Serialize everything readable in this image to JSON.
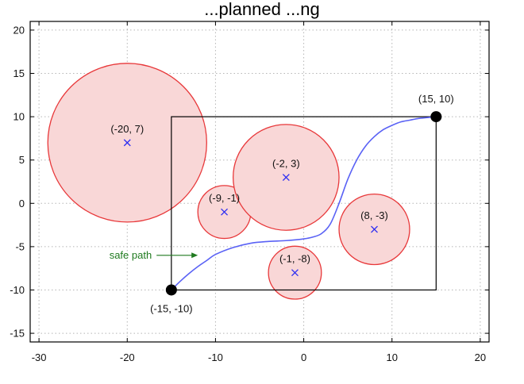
{
  "chart_data": {
    "type": "scatter",
    "title": "...planned ...ng",
    "xlim": [
      -31,
      21
    ],
    "ylim": [
      -16,
      21
    ],
    "x_ticks": [
      -30,
      -20,
      -10,
      0,
      10,
      20
    ],
    "y_ticks": [
      -15,
      -10,
      -5,
      0,
      5,
      10,
      15,
      20
    ],
    "x_tick_labels": [
      "-30",
      "-20",
      "-10",
      "0",
      "10",
      "20"
    ],
    "y_tick_labels": [
      "-15",
      "-10",
      "-5",
      "0",
      "5",
      "10",
      "15",
      "20"
    ],
    "grid": true,
    "obstacles": [
      {
        "cx": -20,
        "cy": 7,
        "r": 9,
        "label": "(-20, 7)"
      },
      {
        "cx": -9,
        "cy": -1,
        "r": 3,
        "label": "(-9, -1)"
      },
      {
        "cx": -2,
        "cy": 3,
        "r": 6,
        "label": "(-2, 3)"
      },
      {
        "cx": 8,
        "cy": -3,
        "r": 4,
        "label": "(8, -3)"
      },
      {
        "cx": -1,
        "cy": -8,
        "r": 3,
        "label": "(-1, -8)"
      }
    ],
    "start": {
      "x": -15,
      "y": -10,
      "label": "(-15, -10)"
    },
    "goal": {
      "x": 15,
      "y": 10,
      "label": "(15, 10)"
    },
    "bounding_box": {
      "x_min": -15,
      "x_max": 15,
      "y_min": -10,
      "y_max": 10
    },
    "path": {
      "name": "safe path",
      "points": [
        [
          -15,
          -10
        ],
        [
          -14,
          -9
        ],
        [
          -13,
          -8.1
        ],
        [
          -12,
          -7.3
        ],
        [
          -11,
          -6.6
        ],
        [
          -10,
          -5.9
        ],
        [
          -8,
          -5.1
        ],
        [
          -6,
          -4.6
        ],
        [
          -4,
          -4.4
        ],
        [
          -2,
          -4.3
        ],
        [
          0,
          -4.1
        ],
        [
          1,
          -3.9
        ],
        [
          2,
          -3.5
        ],
        [
          3,
          -2.4
        ],
        [
          4,
          0
        ],
        [
          5,
          2.8
        ],
        [
          6,
          5.0
        ],
        [
          7,
          6.6
        ],
        [
          8,
          7.7
        ],
        [
          9,
          8.5
        ],
        [
          10,
          9.0
        ],
        [
          11,
          9.4
        ],
        [
          12,
          9.6
        ],
        [
          13,
          9.8
        ],
        [
          14,
          9.9
        ],
        [
          15,
          10
        ]
      ]
    },
    "annotation": {
      "text": "safe path",
      "arrow_to": [
        -12,
        -6
      ]
    },
    "colors": {
      "obstacle_fill": "#f9d7d7",
      "obstacle_stroke": "#e8383a",
      "center_marker": "#2d2df2",
      "path": "#5a62f5",
      "annotation": "#1f7a1f",
      "box": "#000000",
      "endpoint": "#000000",
      "grid": "#b5b5b5"
    }
  }
}
